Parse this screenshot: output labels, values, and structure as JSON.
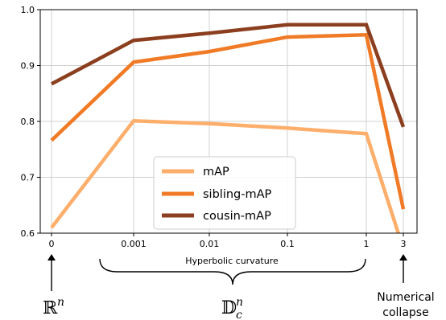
{
  "chart_data": {
    "type": "line",
    "categories": [
      "0",
      "0.001",
      "0.01",
      "0.1",
      "1",
      "3"
    ],
    "xlabel": "Hyperbolic curvature",
    "ylabel": "",
    "ylim": [
      0.6,
      1.0
    ],
    "yticks": [
      "0.6",
      "0.7",
      "0.8",
      "0.9",
      "1.0"
    ],
    "grid": true,
    "legend_position": "bottom-center",
    "series": [
      {
        "name": "mAP",
        "color": "#fdae6b",
        "values": [
          0.61,
          0.801,
          0.796,
          0.788,
          0.778,
          0.572
        ]
      },
      {
        "name": "sibling-mAP",
        "color": "#f07a25",
        "values": [
          0.766,
          0.906,
          0.925,
          0.951,
          0.955,
          0.643
        ]
      },
      {
        "name": "cousin-mAP",
        "color": "#8c3f1f",
        "values": [
          0.867,
          0.945,
          0.958,
          0.973,
          0.973,
          0.79
        ]
      }
    ],
    "annotations": {
      "euclidean": {
        "symbol": "ℝ",
        "superscript": "n"
      },
      "poincare": {
        "symbol": "𝔻",
        "superscript": "n",
        "subscript": "c"
      },
      "collapse": [
        "Numerical",
        "collapse"
      ]
    }
  }
}
